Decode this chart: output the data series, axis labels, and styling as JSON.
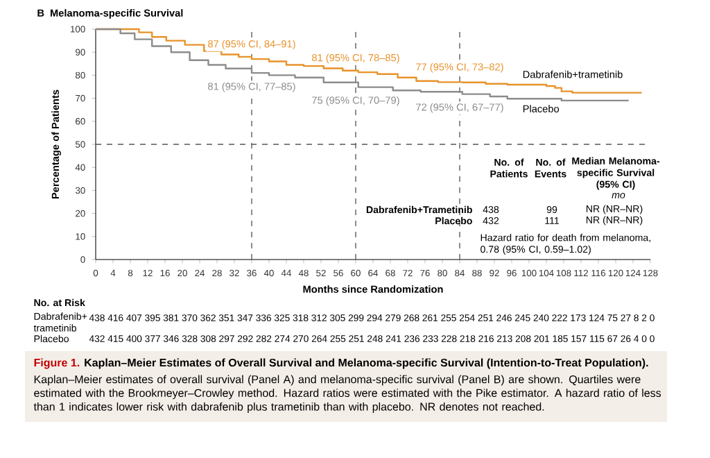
{
  "chart_data": {
    "type": "step",
    "title": "Melanoma-specific Survival",
    "xlabel": "Months since Randomization",
    "ylabel": "Percentage of Patients",
    "xlim": [
      0,
      128
    ],
    "ylim": [
      0,
      100
    ],
    "xticks": [
      0,
      4,
      8,
      12,
      16,
      20,
      24,
      28,
      32,
      36,
      40,
      44,
      48,
      52,
      56,
      60,
      64,
      68,
      72,
      76,
      80,
      84,
      88,
      92,
      96,
      100,
      104,
      108,
      112,
      116,
      120,
      124,
      128
    ],
    "yticks": [
      0,
      10,
      20,
      30,
      40,
      50,
      60,
      70,
      80,
      90,
      100
    ],
    "series": [
      {
        "name": "Dabrafenib+trametinib",
        "color": "#e8922a",
        "x": [
          0,
          7.8,
          10,
          13,
          16.3,
          20.6,
          25,
          29,
          33,
          36,
          40,
          44,
          48,
          52.6,
          57,
          60.6,
          65,
          69.7,
          74,
          79,
          84.6,
          90,
          95,
          104,
          106,
          107.5,
          110,
          126
        ],
        "values": [
          100,
          100,
          98.6,
          96.6,
          95,
          93.2,
          90.5,
          89,
          88,
          87,
          86,
          84.5,
          84,
          83,
          82,
          81.3,
          80.5,
          79,
          77.5,
          77,
          76.9,
          76.3,
          75.9,
          75.3,
          74.5,
          73,
          72.4,
          72.4
        ]
      },
      {
        "name": "Placebo",
        "color": "#8c8c8c",
        "x": [
          0,
          3.5,
          5.7,
          9,
          13,
          17.4,
          21.7,
          26,
          30,
          36,
          40,
          46,
          52.6,
          60.6,
          68.6,
          75,
          84.6,
          91,
          95,
          106,
          107.5,
          123
        ],
        "values": [
          100,
          100,
          98.2,
          95.6,
          92.6,
          90,
          86.5,
          84.5,
          82.9,
          81,
          80,
          79,
          76.9,
          74.8,
          73.4,
          72.8,
          71.8,
          70.8,
          69.8,
          69.8,
          69,
          69
        ]
      }
    ],
    "ref_lines": [
      {
        "axis": "x",
        "value": 36,
        "line_style": "dashed",
        "color": "#555555"
      },
      {
        "axis": "x",
        "value": 60,
        "line_style": "dashed",
        "color": "#555555"
      },
      {
        "axis": "x",
        "value": 84,
        "line_style": "dashed",
        "color": "#555555"
      },
      {
        "axis": "y",
        "value": 50,
        "line_style": "dashed",
        "color": "#555555"
      }
    ],
    "annotations": [
      {
        "text": "87 (95% CI, 84–91)",
        "x": 36,
        "y": 87
      },
      {
        "text": "81 (95% CI, 78–85)",
        "x": 60,
        "y": 81
      },
      {
        "text": "77 (95% CI, 73–82)",
        "x": 84,
        "y": 77
      },
      {
        "text": "81 (95% CI, 77–85)",
        "x": 36,
        "y": 81
      },
      {
        "text": "75 (95% CI, 70–79)",
        "x": 60,
        "y": 75
      },
      {
        "text": "72 (95% CI, 67–77)",
        "x": 84,
        "y": 72
      },
      "No. of Patients",
      "No. of Events",
      "Median Melanoma-specific Survival (95% CI)",
      "mo",
      "Dabrafenib+Trametinib",
      "438",
      "99",
      "NR (NR–NR)",
      "Placebo",
      "432",
      "111",
      "NR (NR–NR)",
      "Hazard ratio for death from melanoma, 0.78 (95% CI, 0.59–1.02)",
      "No. at Risk",
      "Dabrafenib+ trametinib",
      "438 416 407 395 381 370 362 351 347 336 325 318 312 305 299 294 279 268 261 255 254 251 246 245 240 222 173 124 75 27 8 2 0",
      "Placebo",
      "432 415 400 377 346 328 308 297 292 282 274 270 264 255 251 248 241 236 233 228 218 216 213 208 201 185 157 115 67 26 4 0 0",
      "Figure 1.",
      "Kaplan–Meier Estimates of Overall Survival and Melanoma-specific Survival (Intention-to-Treat Population).",
      "Kaplan–Meier estimates of overall survival (Panel A) and melanoma-specific survival (Panel B) are shown. Quartiles were estimated with the Brookmeyer–Crowley method. Hazard ratios were estimated with the Pike estimator. A hazard ratio of less than 1 indicates lower risk with dabrafenib plus trametinib than with placebo. NR denotes not reached.",
      "B"
    ]
  }
}
